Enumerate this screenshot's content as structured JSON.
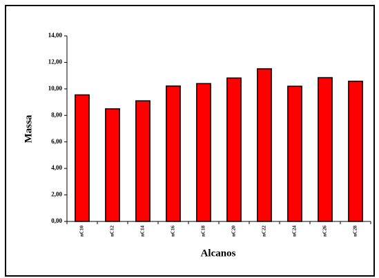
{
  "chart_data": {
    "type": "bar",
    "x_label": "Alcanos",
    "y_label": "Massa",
    "categories": [
      "nC10",
      "nC12",
      "nC14",
      "nC16",
      "nC18",
      "nC20",
      "nC22",
      "nC24",
      "nC26",
      "nC28"
    ],
    "values": [
      9.55,
      8.5,
      9.1,
      10.22,
      10.4,
      10.82,
      11.52,
      10.2,
      10.85,
      10.58
    ],
    "color": "#ff0000",
    "ylim": [
      0,
      14
    ],
    "yticks": [
      {
        "value": 0,
        "label": "0,00"
      },
      {
        "value": 2,
        "label": "2,00"
      },
      {
        "value": 4,
        "label": "4,00"
      },
      {
        "value": 6,
        "label": "6,00"
      },
      {
        "value": 8,
        "label": "8,00"
      },
      {
        "value": 10,
        "label": "10,00"
      },
      {
        "value": 12,
        "label": "12,00"
      },
      {
        "value": 14,
        "label": "14,00"
      }
    ],
    "grid": false
  }
}
